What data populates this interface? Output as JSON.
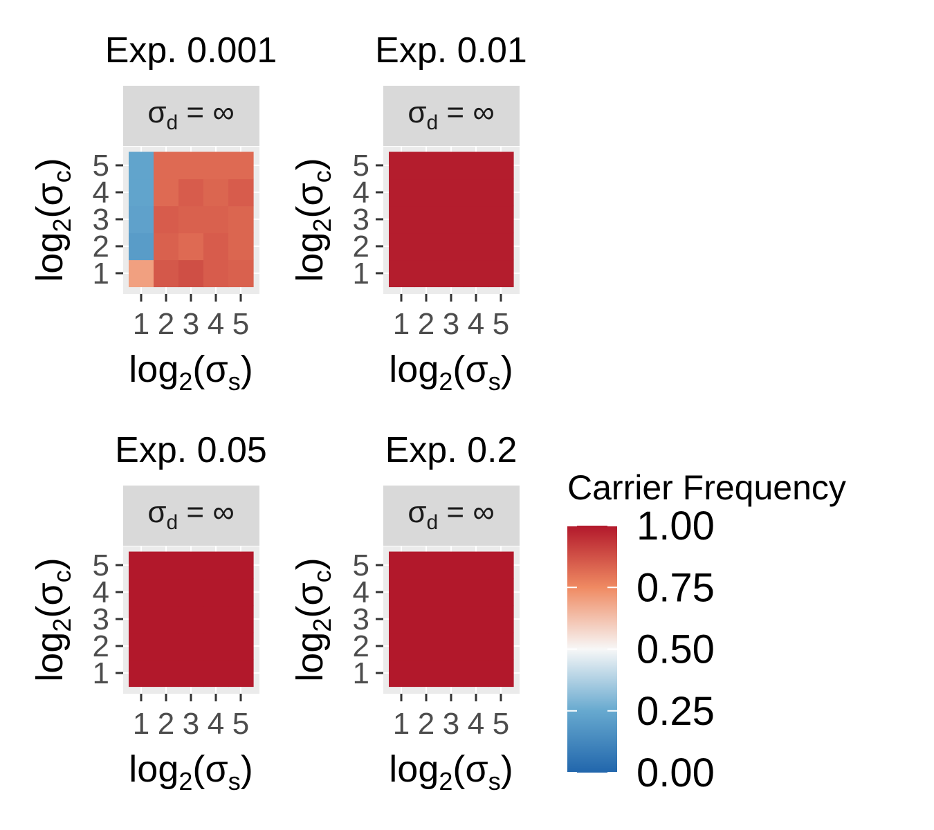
{
  "chart_data": [
    {
      "type": "heatmap",
      "title": "Exp. 0.001",
      "facet": {
        "symbol": "σ",
        "sub": "d",
        "rel": " = ",
        "value": "∞"
      },
      "xlabel": {
        "base": "log",
        "base_sub": "2",
        "open": "(",
        "sym": "σ",
        "sym_sub": "s",
        "close": ")"
      },
      "ylabel": {
        "base": "log",
        "base_sub": "2",
        "open": "(",
        "sym": "σ",
        "sym_sub": "c",
        "close": ")"
      },
      "x": [
        1,
        2,
        3,
        4,
        5
      ],
      "y": [
        1,
        2,
        3,
        4,
        5
      ],
      "z": [
        [
          0.7,
          0.86,
          0.88,
          0.85,
          0.84
        ],
        [
          0.2,
          0.84,
          0.82,
          0.85,
          0.83
        ],
        [
          0.22,
          0.85,
          0.84,
          0.84,
          0.83
        ],
        [
          0.23,
          0.82,
          0.85,
          0.83,
          0.85
        ],
        [
          0.23,
          0.82,
          0.82,
          0.82,
          0.82
        ]
      ]
    },
    {
      "type": "heatmap",
      "title": "Exp. 0.01",
      "facet": {
        "symbol": "σ",
        "sub": "d",
        "rel": " = ",
        "value": "∞"
      },
      "xlabel": {
        "base": "log",
        "base_sub": "2",
        "open": "(",
        "sym": "σ",
        "sym_sub": "s",
        "close": ")"
      },
      "ylabel": {
        "base": "log",
        "base_sub": "2",
        "open": "(",
        "sym": "σ",
        "sym_sub": "c",
        "close": ")"
      },
      "x": [
        1,
        2,
        3,
        4,
        5
      ],
      "y": [
        1,
        2,
        3,
        4,
        5
      ],
      "z": [
        [
          0.99,
          0.99,
          0.99,
          0.99,
          0.99
        ],
        [
          0.99,
          0.99,
          0.99,
          0.99,
          0.99
        ],
        [
          0.99,
          0.99,
          0.99,
          0.99,
          0.99
        ],
        [
          0.99,
          0.99,
          0.99,
          0.99,
          0.99
        ],
        [
          0.99,
          0.99,
          0.99,
          0.99,
          0.99
        ]
      ]
    },
    {
      "type": "heatmap",
      "title": "Exp. 0.05",
      "facet": {
        "symbol": "σ",
        "sub": "d",
        "rel": " = ",
        "value": "∞"
      },
      "xlabel": {
        "base": "log",
        "base_sub": "2",
        "open": "(",
        "sym": "σ",
        "sym_sub": "s",
        "close": ")"
      },
      "ylabel": {
        "base": "log",
        "base_sub": "2",
        "open": "(",
        "sym": "σ",
        "sym_sub": "c",
        "close": ")"
      },
      "x": [
        1,
        2,
        3,
        4,
        5
      ],
      "y": [
        1,
        2,
        3,
        4,
        5
      ],
      "z": [
        [
          1.0,
          1.0,
          1.0,
          1.0,
          1.0
        ],
        [
          1.0,
          1.0,
          1.0,
          1.0,
          1.0
        ],
        [
          1.0,
          1.0,
          1.0,
          1.0,
          1.0
        ],
        [
          1.0,
          1.0,
          1.0,
          1.0,
          1.0
        ],
        [
          1.0,
          1.0,
          1.0,
          1.0,
          1.0
        ]
      ]
    },
    {
      "type": "heatmap",
      "title": "Exp. 0.2",
      "facet": {
        "symbol": "σ",
        "sub": "d",
        "rel": " = ",
        "value": "∞"
      },
      "xlabel": {
        "base": "log",
        "base_sub": "2",
        "open": "(",
        "sym": "σ",
        "sym_sub": "s",
        "close": ")"
      },
      "ylabel": {
        "base": "log",
        "base_sub": "2",
        "open": "(",
        "sym": "σ",
        "sym_sub": "c",
        "close": ")"
      },
      "x": [
        1,
        2,
        3,
        4,
        5
      ],
      "y": [
        1,
        2,
        3,
        4,
        5
      ],
      "z": [
        [
          1.0,
          1.0,
          1.0,
          1.0,
          1.0
        ],
        [
          1.0,
          1.0,
          1.0,
          1.0,
          1.0
        ],
        [
          1.0,
          1.0,
          1.0,
          1.0,
          1.0
        ],
        [
          1.0,
          1.0,
          1.0,
          1.0,
          1.0
        ],
        [
          1.0,
          1.0,
          1.0,
          1.0,
          1.0
        ]
      ]
    }
  ],
  "legend": {
    "title": "Carrier Frequency",
    "ticks": [
      "0.00",
      "0.25",
      "0.50",
      "0.75",
      "1.00"
    ],
    "range": [
      0,
      1
    ],
    "colors": {
      "low": "#2166ac",
      "low_mid": "#67a9cf",
      "mid": "#f7f7f7",
      "high_mid": "#ef8a62",
      "high": "#b2182b"
    }
  }
}
